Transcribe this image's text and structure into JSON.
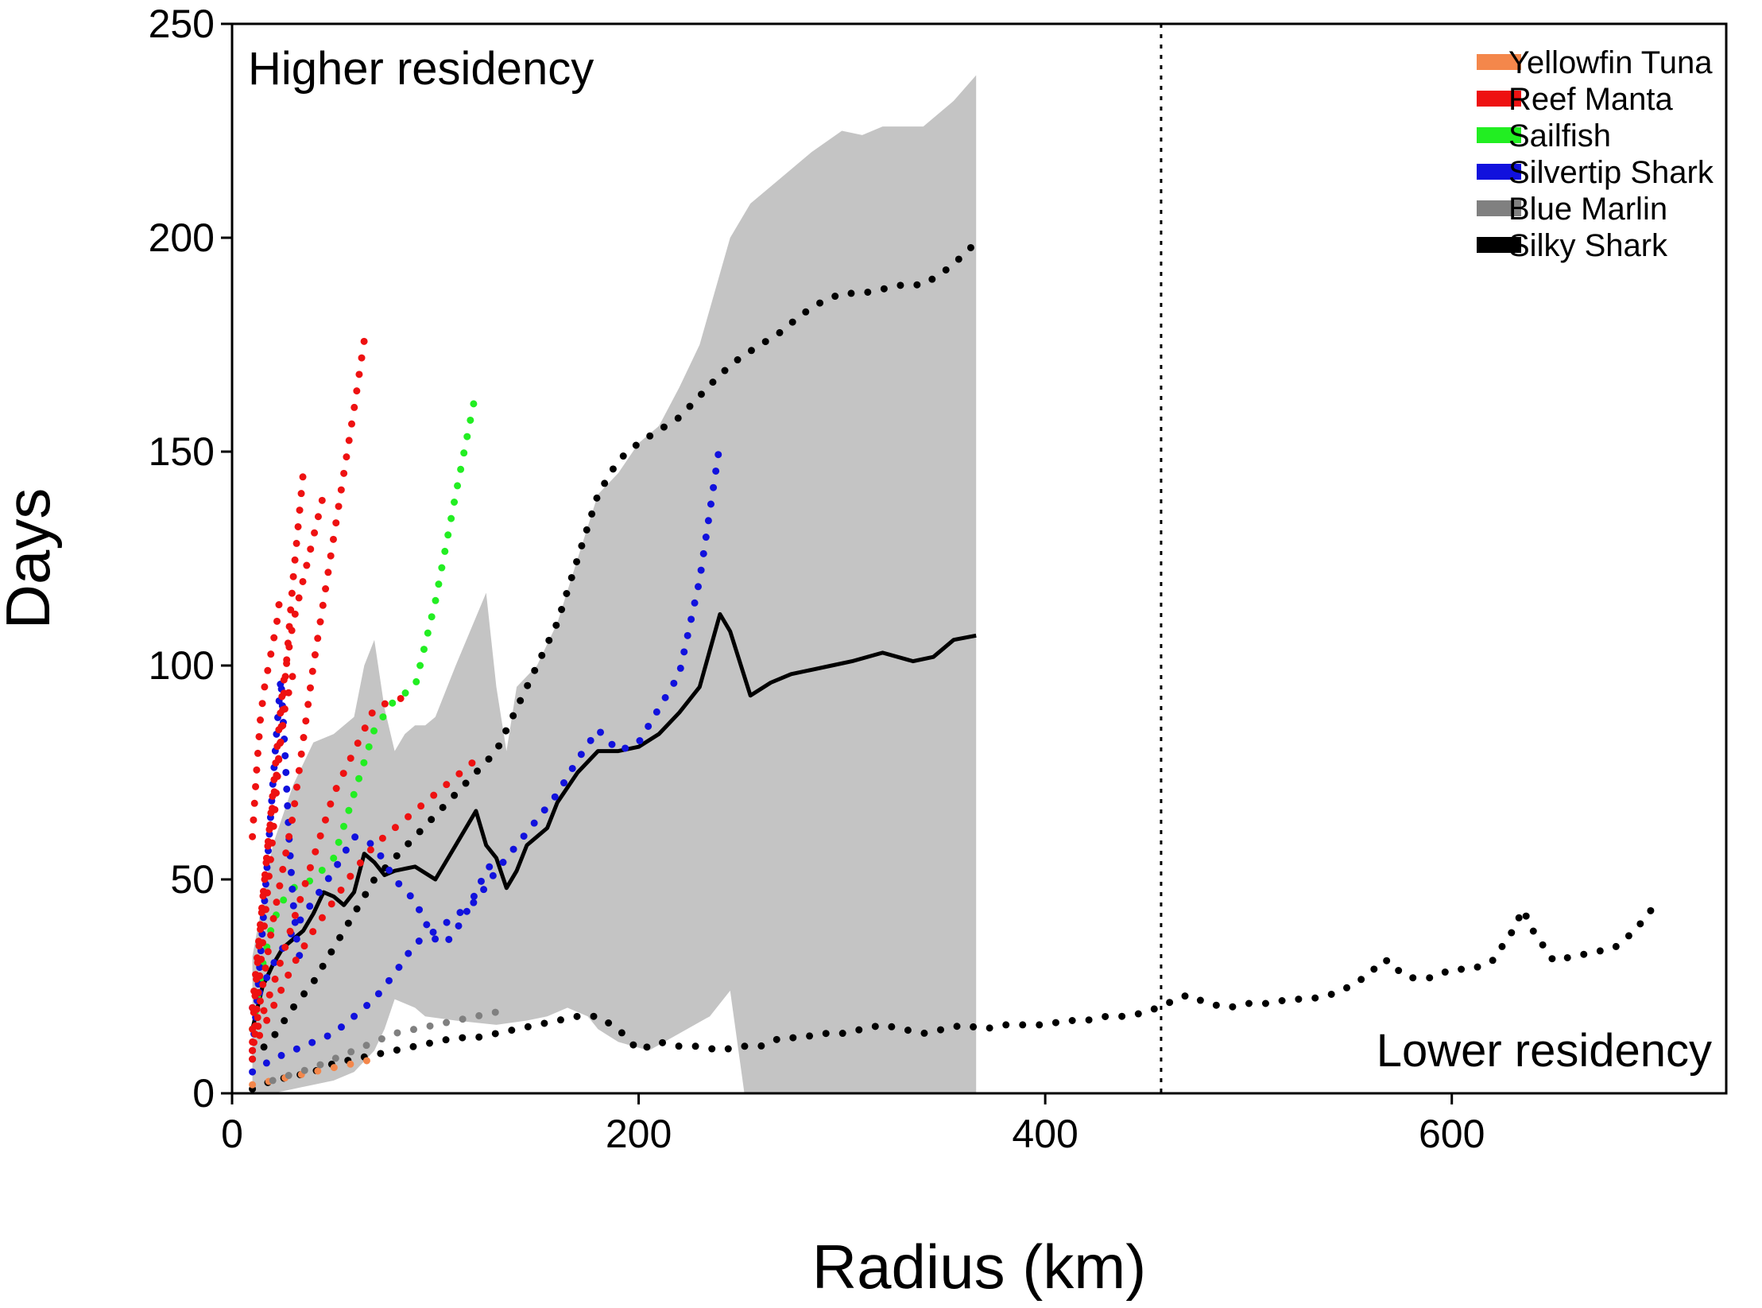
{
  "chart_data": {
    "type": "line",
    "title": "",
    "xlabel": "Radius (km)",
    "ylabel": "Days",
    "xlim": [
      0,
      735
    ],
    "ylim": [
      0,
      250
    ],
    "xticks": [
      0,
      200,
      400,
      600
    ],
    "yticks": [
      0,
      50,
      100,
      150,
      200,
      250
    ],
    "grid": false,
    "legend": {
      "position": "top-right",
      "entries": [
        {
          "name": "Yellowfin Tuna",
          "color": "#f4874b"
        },
        {
          "name": "Reef Manta",
          "color": "#ee1111"
        },
        {
          "name": "Sailfish",
          "color": "#22ee22"
        },
        {
          "name": "Silvertip Shark",
          "color": "#1111dd"
        },
        {
          "name": "Blue Marlin",
          "color": "#808080"
        },
        {
          "name": "Silky Shark",
          "color": "#000000"
        }
      ]
    },
    "annotations": [
      {
        "text": "Higher residency",
        "position": "top-left"
      },
      {
        "text": "Lower residency",
        "position": "bottom-right"
      }
    ],
    "reference_line": {
      "x": 457,
      "style": "dotted"
    },
    "band": {
      "name": "Silky Shark range",
      "color": "#c4c4c4",
      "upper": [
        [
          10,
          32
        ],
        [
          20,
          58
        ],
        [
          30,
          72
        ],
        [
          40,
          82
        ],
        [
          50,
          84
        ],
        [
          60,
          88
        ],
        [
          65,
          100
        ],
        [
          70,
          106
        ],
        [
          75,
          90
        ],
        [
          80,
          80
        ],
        [
          85,
          84
        ],
        [
          90,
          86
        ],
        [
          95,
          86
        ],
        [
          100,
          88
        ],
        [
          110,
          100
        ],
        [
          125,
          117
        ],
        [
          130,
          95
        ],
        [
          135,
          80
        ],
        [
          140,
          95
        ],
        [
          150,
          100
        ],
        [
          160,
          110
        ],
        [
          170,
          125
        ],
        [
          180,
          140
        ],
        [
          190,
          145
        ],
        [
          200,
          152
        ],
        [
          210,
          156
        ],
        [
          220,
          165
        ],
        [
          230,
          175
        ],
        [
          245,
          200
        ],
        [
          255,
          208
        ],
        [
          270,
          214
        ],
        [
          285,
          220
        ],
        [
          300,
          225
        ],
        [
          310,
          224
        ],
        [
          320,
          226
        ],
        [
          340,
          226
        ],
        [
          355,
          232
        ],
        [
          366,
          238
        ]
      ],
      "lower": [
        [
          366,
          0
        ],
        [
          252,
          0
        ],
        [
          245,
          24
        ],
        [
          235,
          18
        ],
        [
          220,
          14
        ],
        [
          205,
          10
        ],
        [
          190,
          12
        ],
        [
          180,
          15
        ],
        [
          175,
          18
        ],
        [
          165,
          20
        ],
        [
          155,
          18
        ],
        [
          145,
          17
        ],
        [
          130,
          16
        ],
        [
          110,
          17
        ],
        [
          95,
          18
        ],
        [
          90,
          20
        ],
        [
          85,
          21
        ],
        [
          80,
          22
        ],
        [
          75,
          15
        ],
        [
          70,
          10
        ],
        [
          60,
          5
        ],
        [
          50,
          3
        ],
        [
          40,
          2
        ],
        [
          30,
          1
        ],
        [
          20,
          0
        ],
        [
          10,
          0
        ]
      ]
    },
    "series": [
      {
        "name": "Silky Shark mean",
        "color": "#000000",
        "style": "solid",
        "x": [
          10,
          15,
          20,
          25,
          30,
          35,
          40,
          45,
          50,
          55,
          60,
          65,
          70,
          75,
          80,
          90,
          100,
          110,
          120,
          125,
          130,
          135,
          140,
          145,
          150,
          155,
          160,
          170,
          180,
          190,
          200,
          210,
          220,
          230,
          240,
          245,
          255,
          265,
          275,
          285,
          295,
          305,
          320,
          335,
          345,
          355,
          366
        ],
        "values": [
          15,
          25,
          30,
          34,
          36,
          38,
          42,
          47,
          46,
          44,
          47,
          56,
          54,
          51,
          52,
          53,
          50,
          58,
          66,
          58,
          55,
          48,
          52,
          58,
          60,
          62,
          68,
          75,
          80,
          80,
          81,
          84,
          89,
          95,
          112,
          108,
          93,
          96,
          98,
          99,
          100,
          101,
          103,
          101,
          102,
          106,
          107
        ]
      },
      {
        "name": "Silky Shark upper",
        "color": "#000000",
        "style": "dotted",
        "x": [
          10,
          20,
          30,
          40,
          50,
          60,
          70,
          80,
          90,
          100,
          110,
          120,
          130,
          140,
          150,
          160,
          170,
          180,
          190,
          200,
          210,
          220,
          230,
          240,
          250,
          260,
          270,
          280,
          290,
          300,
          310,
          320,
          330,
          340,
          350,
          360,
          366
        ],
        "values": [
          8,
          13,
          20,
          26,
          34,
          42,
          50,
          55,
          60,
          65,
          70,
          75,
          80,
          90,
          100,
          110,
          125,
          140,
          148,
          152,
          155,
          158,
          163,
          168,
          172,
          175,
          178,
          182,
          185,
          187,
          187,
          188,
          189,
          189,
          192,
          196,
          199
        ]
      },
      {
        "name": "Silky Shark lower",
        "color": "#000000",
        "style": "dotted",
        "x": [
          10,
          20,
          30,
          40,
          50,
          60,
          70,
          80,
          90,
          100,
          110,
          120,
          130,
          140,
          150,
          160,
          170,
          180,
          190,
          200,
          210,
          220,
          230,
          240,
          250,
          260,
          270,
          280,
          290,
          300,
          310,
          320,
          330,
          340,
          350,
          360,
          370,
          380,
          390,
          400,
          410,
          420,
          430,
          440,
          450,
          460,
          470,
          480,
          490,
          500,
          510,
          520,
          530,
          540,
          550,
          560,
          565,
          570,
          575,
          580,
          590,
          600,
          610,
          620,
          630,
          635,
          640,
          650,
          660,
          670,
          680,
          690,
          700
        ],
        "values": [
          1,
          3,
          4,
          5,
          7,
          8,
          9,
          10,
          11,
          12,
          13,
          13,
          14,
          15,
          16,
          17,
          18,
          18,
          15,
          10,
          12,
          11,
          11,
          10,
          11,
          11,
          13,
          13,
          14,
          14,
          15,
          16,
          15,
          14,
          15,
          16,
          15,
          16,
          16,
          16,
          17,
          17,
          18,
          18,
          19,
          21,
          23,
          21,
          20,
          21,
          21,
          22,
          22,
          23,
          25,
          28,
          31,
          31,
          28,
          27,
          27,
          29,
          29,
          31,
          38,
          43,
          38,
          31,
          32,
          33,
          34,
          38,
          44
        ]
      },
      {
        "name": "Yellowfin Tuna",
        "color": "#f4874b",
        "style": "dotted",
        "x": [
          10,
          20,
          30,
          40,
          50,
          60,
          70
        ],
        "values": [
          2,
          3,
          4,
          5,
          6,
          7,
          8
        ]
      },
      {
        "name": "Blue Marlin",
        "color": "#808080",
        "style": "dotted",
        "x": [
          20,
          40,
          60,
          80,
          100,
          120,
          130
        ],
        "values": [
          3,
          6,
          10,
          14,
          16,
          18,
          19
        ]
      },
      {
        "name": "Sailfish",
        "color": "#22ee22",
        "style": "dotted",
        "x": [
          10,
          15,
          20,
          25,
          30,
          40,
          50,
          60,
          70,
          80,
          90,
          100,
          110,
          120
        ],
        "values": [
          15,
          30,
          40,
          45,
          48,
          50,
          55,
          70,
          85,
          92,
          95,
          115,
          140,
          164
        ]
      },
      {
        "name": "Silvertip Shark A",
        "color": "#1111dd",
        "style": "dotted",
        "x": [
          10,
          20,
          30,
          40,
          50,
          60,
          70,
          80,
          90,
          100,
          120,
          130,
          140,
          150,
          160,
          170,
          180,
          190,
          200,
          210,
          220,
          230,
          240
        ],
        "values": [
          5,
          8,
          10,
          12,
          14,
          18,
          22,
          28,
          35,
          38,
          45,
          52,
          58,
          64,
          70,
          78,
          85,
          80,
          82,
          90,
          98,
          120,
          152
        ]
      },
      {
        "name": "Silvertip Shark B",
        "color": "#1111dd",
        "style": "dotted",
        "x": [
          10,
          20,
          30,
          40,
          50,
          60,
          70,
          80,
          90,
          95,
          100,
          105,
          110,
          115,
          120,
          125,
          130
        ],
        "values": [
          20,
          30,
          38,
          45,
          52,
          60,
          58,
          50,
          45,
          40,
          36,
          35,
          38,
          42,
          47,
          52,
          55
        ]
      },
      {
        "name": "Silvertip Shark C",
        "color": "#1111dd",
        "style": "dotted",
        "x": [
          10,
          12,
          14,
          16,
          18,
          20,
          22,
          24,
          26,
          28,
          30,
          32,
          34
        ],
        "values": [
          10,
          20,
          32,
          45,
          58,
          72,
          85,
          97,
          80,
          60,
          45,
          35,
          30
        ]
      },
      {
        "name": "Reef Manta A",
        "color": "#ee1111",
        "style": "dotted",
        "x": [
          10,
          20,
          30,
          40,
          50,
          60,
          65
        ],
        "values": [
          10,
          40,
          65,
          100,
          130,
          160,
          176
        ]
      },
      {
        "name": "Reef Manta B",
        "color": "#ee1111",
        "style": "dotted",
        "x": [
          10,
          15,
          20,
          25,
          30,
          35
        ],
        "values": [
          8,
          35,
          60,
          90,
          120,
          145
        ]
      },
      {
        "name": "Reef Manta C",
        "color": "#ee1111",
        "style": "dotted",
        "x": [
          10,
          15,
          20,
          25,
          30,
          35,
          40,
          45
        ],
        "values": [
          15,
          45,
          70,
          95,
          110,
          120,
          130,
          140
        ]
      },
      {
        "name": "Reef Manta D",
        "color": "#ee1111",
        "style": "dotted",
        "x": [
          10,
          12,
          14,
          16,
          18,
          20,
          22,
          24
        ],
        "values": [
          60,
          75,
          88,
          95,
          100,
          105,
          110,
          118
        ]
      },
      {
        "name": "Reef Manta E",
        "color": "#ee1111",
        "style": "dotted",
        "x": [
          10,
          20,
          30,
          40,
          50,
          60,
          70,
          80,
          90
        ],
        "values": [
          12,
          25,
          40,
          55,
          70,
          80,
          90,
          92,
          93
        ]
      },
      {
        "name": "Reef Manta F",
        "color": "#ee1111",
        "style": "dotted",
        "x": [
          10,
          20,
          30,
          40,
          50,
          60,
          70,
          80,
          90,
          100,
          110,
          120
        ],
        "values": [
          10,
          20,
          30,
          38,
          45,
          52,
          58,
          62,
          66,
          70,
          74,
          78
        ]
      },
      {
        "name": "Reef Manta G",
        "color": "#ee1111",
        "style": "dotted",
        "x": [
          10,
          14,
          18,
          22,
          26,
          30
        ],
        "values": [
          20,
          40,
          60,
          75,
          90,
          98
        ]
      }
    ]
  }
}
